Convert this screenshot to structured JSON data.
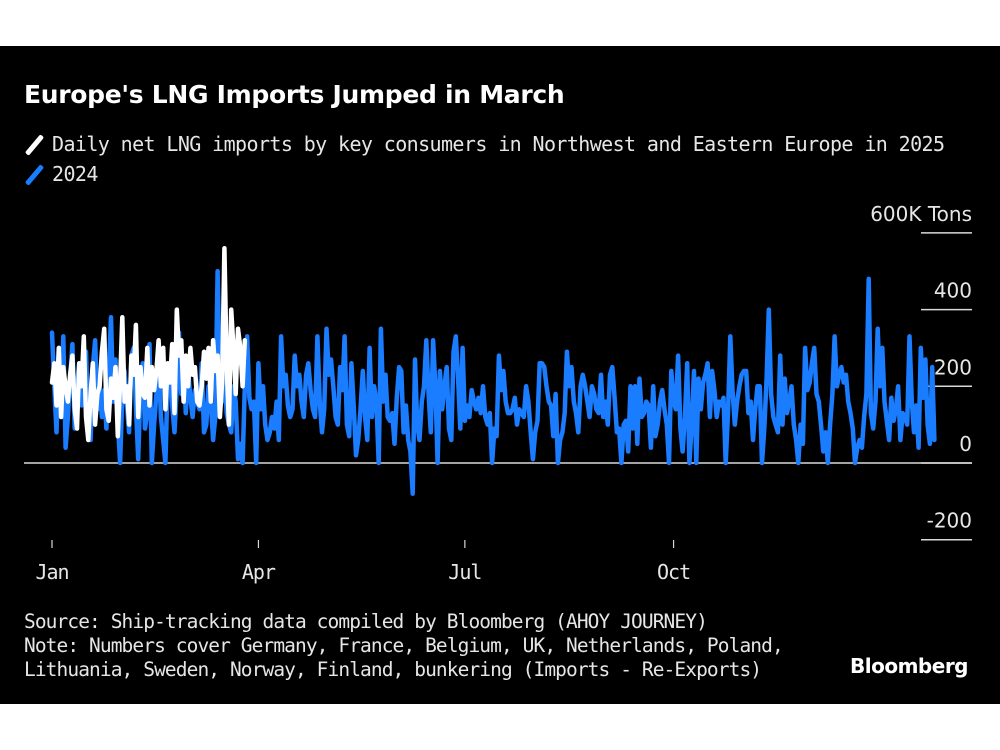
{
  "colors": {
    "background": "#000000",
    "series_2025": "#ffffff",
    "series_2024": "#1a7cff",
    "grid": "#d9d9d9",
    "text": "#e6e6e6"
  },
  "logo": "Bloomberg",
  "notes": {
    "source": "Source: Ship-tracking data compiled by Bloomberg (AHOY JOURNEY)",
    "note_line1": "Note: Numbers cover Germany, France, Belgium, UK, Netherlands, Poland,",
    "note_line2": "Lithuania, Sweden, Norway, Finland, bunkering (Imports - Re-Exports)"
  },
  "chart_data": {
    "type": "line",
    "title": "Europe's LNG Imports Jumped in March",
    "subtitle": "",
    "xlabel": "",
    "ylabel": "",
    "y_unit_label": "600K Tons",
    "ylim": [
      -200,
      600
    ],
    "yticks": [
      600,
      400,
      200,
      0,
      -200
    ],
    "ytick_labels": [
      "600K Tons",
      "400",
      "200",
      "0",
      "-200"
    ],
    "yaxis_position": "right",
    "xlim_days": [
      1,
      366
    ],
    "xticks": [
      {
        "label": "Jan",
        "day": 1
      },
      {
        "label": "Apr",
        "day": 92
      },
      {
        "label": "Jul",
        "day": 183
      },
      {
        "label": "Oct",
        "day": 275
      }
    ],
    "grid": false,
    "zero_line": true,
    "legend_position": "top-left",
    "series": [
      {
        "name": "Daily net LNG imports by key consumers in Northwest and Eastern Europe in 2025",
        "legend_label": "Daily net LNG imports by key consumers in Northwest and Eastern Europe in 2025",
        "color": "#ffffff",
        "start_day": 1,
        "values": [
          210,
          260,
          150,
          300,
          120,
          250,
          200,
          160,
          230,
          280,
          140,
          90,
          260,
          200,
          330,
          120,
          60,
          180,
          260,
          100,
          180,
          200,
          290,
          350,
          140,
          110,
          220,
          170,
          250,
          70,
          210,
          380,
          160,
          200,
          100,
          280,
          230,
          360,
          120,
          250,
          180,
          170,
          300,
          150,
          250,
          190,
          240,
          320,
          200,
          300,
          140,
          260,
          210,
          310,
          130,
          400,
          280,
          320,
          160,
          280,
          200,
          300,
          230,
          250,
          160,
          150,
          200,
          290,
          220,
          300,
          160,
          320,
          240,
          280,
          120,
          210,
          560,
          250,
          100,
          400,
          300,
          180,
          350,
          300,
          200,
          320
        ]
      },
      {
        "name": "2024",
        "legend_label": "2024",
        "color": "#1a7cff",
        "start_day": 1,
        "values": [
          340,
          200,
          80,
          260,
          150,
          330,
          40,
          120,
          220,
          310,
          90,
          200,
          260,
          150,
          180,
          290,
          100,
          60,
          250,
          320,
          140,
          200,
          120,
          190,
          90,
          230,
          380,
          160,
          270,
          110,
          0,
          180,
          240,
          150,
          80,
          280,
          300,
          150,
          10,
          200,
          260,
          90,
          130,
          310,
          0,
          100,
          180,
          290,
          120,
          60,
          0,
          220,
          250,
          150,
          80,
          200,
          340,
          180,
          260,
          130,
          240,
          170,
          120,
          190,
          160,
          140,
          260,
          80,
          100,
          200,
          160,
          60,
          120,
          500,
          200,
          160,
          240,
          130,
          100,
          80,
          200,
          160,
          10,
          50,
          0,
          200,
          330,
          170,
          140,
          160,
          0,
          260,
          140,
          200,
          100,
          60,
          80,
          120,
          90,
          160,
          60,
          330,
          200,
          230,
          150,
          120,
          140,
          280,
          200,
          230,
          160,
          120,
          230,
          260,
          190,
          140,
          120,
          330,
          160,
          80,
          140,
          350,
          230,
          270,
          200,
          120,
          100,
          250,
          190,
          330,
          100,
          70,
          260,
          150,
          20,
          60,
          140,
          240,
          120,
          60,
          300,
          120,
          200,
          160,
          0,
          350,
          160,
          230,
          120,
          110,
          130,
          50,
          170,
          250,
          240,
          80,
          150,
          60,
          30,
          -80,
          270,
          100,
          60,
          160,
          200,
          320,
          180,
          80,
          320,
          200,
          0,
          240,
          140,
          200,
          250,
          90,
          60,
          290,
          330,
          220,
          90,
          300,
          110,
          150,
          120,
          190,
          160,
          140,
          170,
          130,
          200,
          120,
          100,
          130,
          0,
          90,
          70,
          280,
          190,
          240,
          160,
          130,
          130,
          140,
          170,
          100,
          140,
          130,
          120,
          200,
          160,
          80,
          10,
          80,
          110,
          260,
          260,
          250,
          200,
          160,
          150,
          70,
          180,
          0,
          60,
          80,
          130,
          290,
          200,
          250,
          160,
          130,
          80,
          200,
          230,
          200,
          160,
          120,
          200,
          180,
          140,
          130,
          230,
          120,
          160,
          100,
          230,
          250,
          170,
          80,
          90,
          0,
          100,
          110,
          30,
          200,
          90,
          200,
          50,
          220,
          120,
          130,
          160,
          150,
          40,
          200,
          70,
          100,
          160,
          190,
          140,
          100,
          0,
          240,
          160,
          140,
          280,
          90,
          30,
          120,
          260,
          0,
          100,
          240,
          0,
          220,
          140,
          210,
          230,
          260,
          120,
          240,
          190,
          120,
          160,
          150,
          170,
          0,
          130,
          330,
          190,
          100,
          160,
          200,
          230,
          240,
          240,
          130,
          160,
          60,
          140,
          200,
          200,
          0,
          90,
          220,
          400,
          180,
          120,
          100,
          80,
          280,
          100,
          220,
          130,
          160,
          200,
          100,
          60,
          0,
          100,
          50,
          300,
          190,
          210,
          260,
          300,
          180,
          160,
          100,
          30,
          80,
          0,
          100,
          180,
          330,
          200,
          230,
          250,
          210,
          230,
          160,
          130,
          90,
          0,
          40,
          60,
          40,
          120,
          180,
          480,
          130,
          90,
          160,
          350,
          200,
          300,
          160,
          110,
          60,
          170,
          110,
          140,
          200,
          60,
          130,
          120,
          100,
          330,
          160,
          80,
          150,
          40,
          300,
          170,
          270,
          100,
          50,
          250,
          60
        ]
      }
    ]
  }
}
